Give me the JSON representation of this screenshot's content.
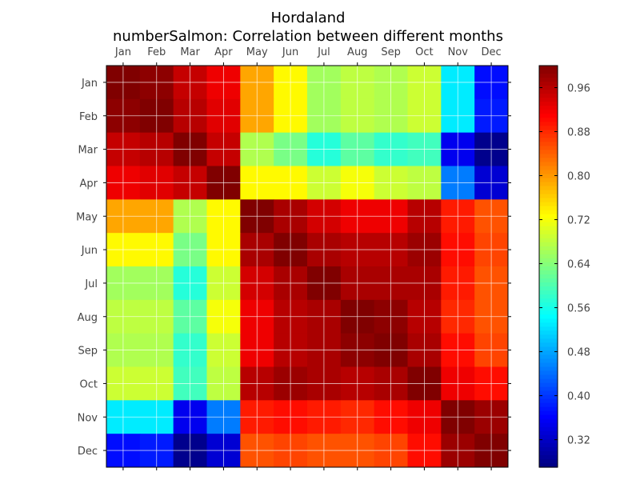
{
  "chart_data": {
    "type": "heatmap",
    "title": "Hordaland",
    "subtitle": "numberSalmon: Correlation between different months",
    "x_categories": [
      "Jan",
      "Feb",
      "Mar",
      "Apr",
      "May",
      "Jun",
      "Jul",
      "Aug",
      "Sep",
      "Oct",
      "Nov",
      "Dec"
    ],
    "y_categories": [
      "Jan",
      "Feb",
      "Mar",
      "Apr",
      "May",
      "Jun",
      "Jul",
      "Aug",
      "Sep",
      "Oct",
      "Nov",
      "Dec"
    ],
    "colormap": "jet",
    "vmin": 0.27,
    "vmax": 1.0,
    "colorbar_ticks": [
      "0.32",
      "0.40",
      "0.48",
      "0.56",
      "0.64",
      "0.72",
      "0.80",
      "0.88",
      "0.96"
    ],
    "matrix": [
      [
        1.0,
        0.99,
        0.95,
        0.92,
        0.79,
        0.73,
        0.66,
        0.68,
        0.67,
        0.69,
        0.53,
        0.37
      ],
      [
        0.99,
        1.0,
        0.96,
        0.93,
        0.79,
        0.73,
        0.66,
        0.68,
        0.67,
        0.69,
        0.53,
        0.38
      ],
      [
        0.95,
        0.96,
        1.0,
        0.95,
        0.67,
        0.63,
        0.57,
        0.61,
        0.58,
        0.59,
        0.35,
        0.28
      ],
      [
        0.92,
        0.93,
        0.95,
        1.0,
        0.73,
        0.73,
        0.69,
        0.72,
        0.69,
        0.68,
        0.45,
        0.33
      ],
      [
        0.79,
        0.79,
        0.67,
        0.73,
        1.0,
        0.97,
        0.94,
        0.92,
        0.92,
        0.96,
        0.89,
        0.85
      ],
      [
        0.73,
        0.73,
        0.63,
        0.73,
        0.97,
        1.0,
        0.97,
        0.96,
        0.96,
        0.98,
        0.9,
        0.86
      ],
      [
        0.66,
        0.66,
        0.57,
        0.69,
        0.94,
        0.97,
        1.0,
        0.97,
        0.97,
        0.97,
        0.89,
        0.85
      ],
      [
        0.68,
        0.68,
        0.61,
        0.72,
        0.92,
        0.96,
        0.97,
        1.0,
        0.99,
        0.96,
        0.88,
        0.85
      ],
      [
        0.67,
        0.67,
        0.58,
        0.69,
        0.92,
        0.96,
        0.97,
        0.99,
        1.0,
        0.97,
        0.9,
        0.86
      ],
      [
        0.69,
        0.69,
        0.59,
        0.68,
        0.96,
        0.98,
        0.97,
        0.96,
        0.97,
        1.0,
        0.92,
        0.9
      ],
      [
        0.53,
        0.53,
        0.35,
        0.45,
        0.89,
        0.9,
        0.89,
        0.88,
        0.9,
        0.92,
        1.0,
        0.98
      ],
      [
        0.37,
        0.38,
        0.28,
        0.33,
        0.85,
        0.86,
        0.85,
        0.85,
        0.86,
        0.9,
        0.98,
        1.0
      ]
    ]
  }
}
